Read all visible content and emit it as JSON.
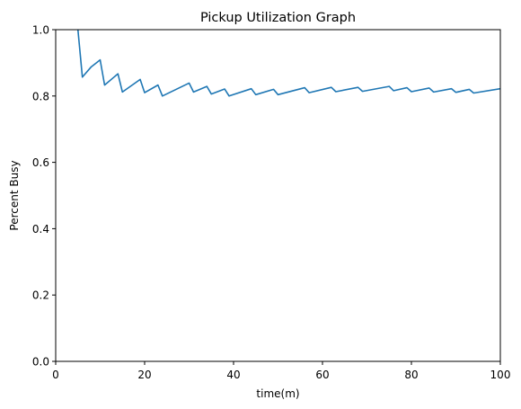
{
  "chart_data": {
    "type": "line",
    "title": "Pickup Utilization Graph",
    "xlabel": "time(m)",
    "ylabel": "Percent Busy",
    "xlim": [
      0,
      100
    ],
    "ylim": [
      0.0,
      1.0
    ],
    "x_ticks": [
      "0",
      "20",
      "40",
      "60",
      "80",
      "100"
    ],
    "y_ticks": [
      "0.0",
      "0.2",
      "0.4",
      "0.6",
      "0.8",
      "1.0"
    ],
    "grid": false,
    "series": [
      {
        "color": "#1f77b4",
        "x": [
          5.0,
          6.0,
          8.0,
          10.0,
          11.0,
          14.0,
          15.0,
          19.0,
          20.0,
          23.0,
          24.0,
          30.0,
          31.0,
          34.0,
          35.0,
          38.0,
          39.0,
          44.0,
          45.0,
          49.0,
          50.0,
          56.0,
          57.0,
          62.0,
          63.0,
          68.0,
          69.0,
          75.0,
          76.0,
          79.0,
          80.0,
          84.0,
          85.0,
          89.0,
          90.0,
          93.0,
          94.0,
          100.0
        ],
        "y": [
          1.0,
          0.857,
          0.888,
          0.909,
          0.833,
          0.867,
          0.812,
          0.85,
          0.81,
          0.833,
          0.8,
          0.839,
          0.812,
          0.829,
          0.806,
          0.821,
          0.8,
          0.822,
          0.804,
          0.82,
          0.804,
          0.825,
          0.81,
          0.826,
          0.813,
          0.826,
          0.814,
          0.829,
          0.816,
          0.825,
          0.813,
          0.824,
          0.812,
          0.822,
          0.811,
          0.82,
          0.809,
          0.822
        ]
      }
    ]
  }
}
